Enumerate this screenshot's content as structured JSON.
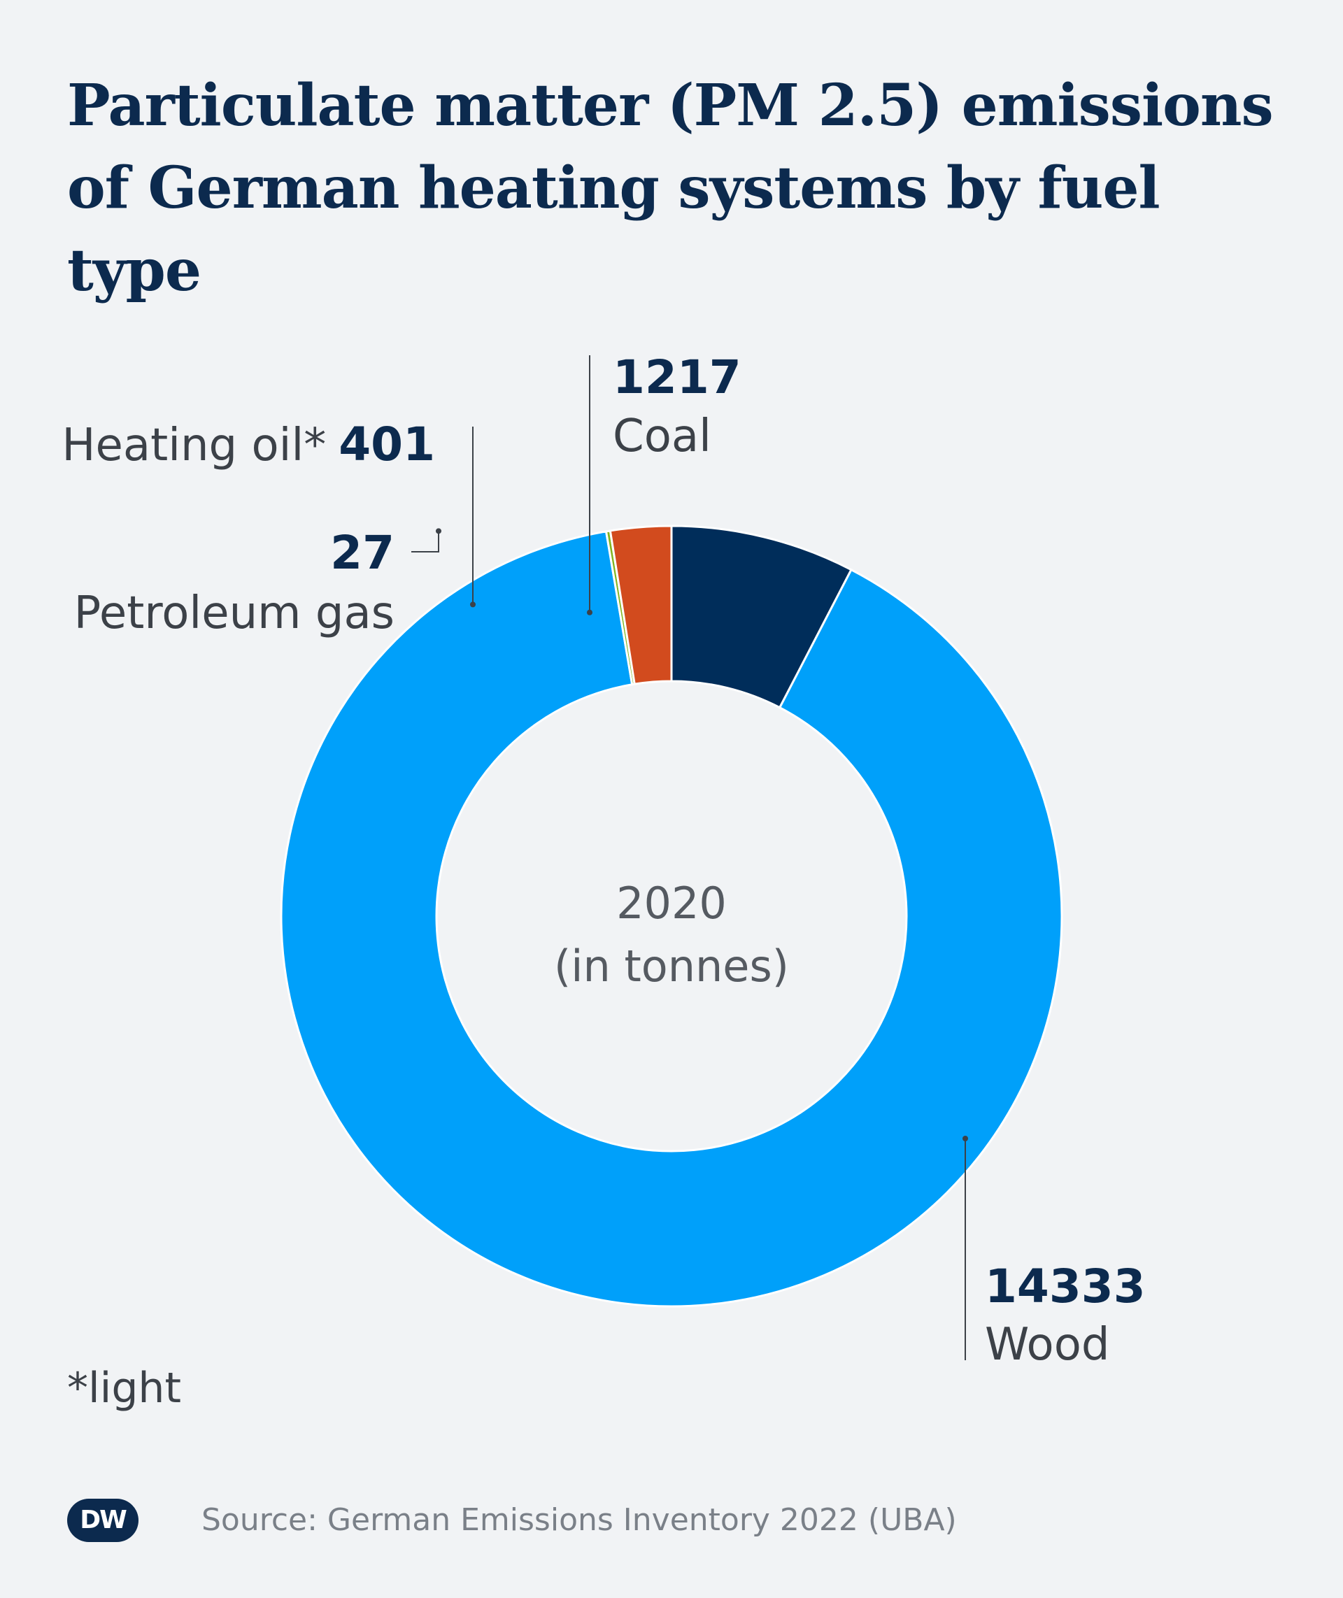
{
  "title": "Particulate matter (PM 2.5) emissions of German heating systems by fuel type",
  "center_label": {
    "line1": "2020",
    "line2": "(in tonnes)"
  },
  "footnote": "*light",
  "source": "Source: German Emissions Inventory 2022 (UBA)",
  "logo_text": "DW",
  "chart_data": {
    "type": "pie",
    "donut": true,
    "title": "Particulate matter (PM 2.5) emissions of German heating systems by fuel type",
    "subtitle": "2020 (in tonnes)",
    "slices": [
      {
        "label": "Coal",
        "value": 1217,
        "value_text": "1217",
        "color": "#002d5a"
      },
      {
        "label": "Wood",
        "value": 14333,
        "value_text": "14333",
        "color": "#00a0fa"
      },
      {
        "label": "Petroleum gas",
        "value": 27,
        "value_text": "27",
        "color": "#82b41e"
      },
      {
        "label": "Heating oil*",
        "value": 401,
        "value_text": "401",
        "color": "#d24b1e"
      }
    ],
    "slice_order": "clockwise from top",
    "legend": "none (direct labels)"
  }
}
